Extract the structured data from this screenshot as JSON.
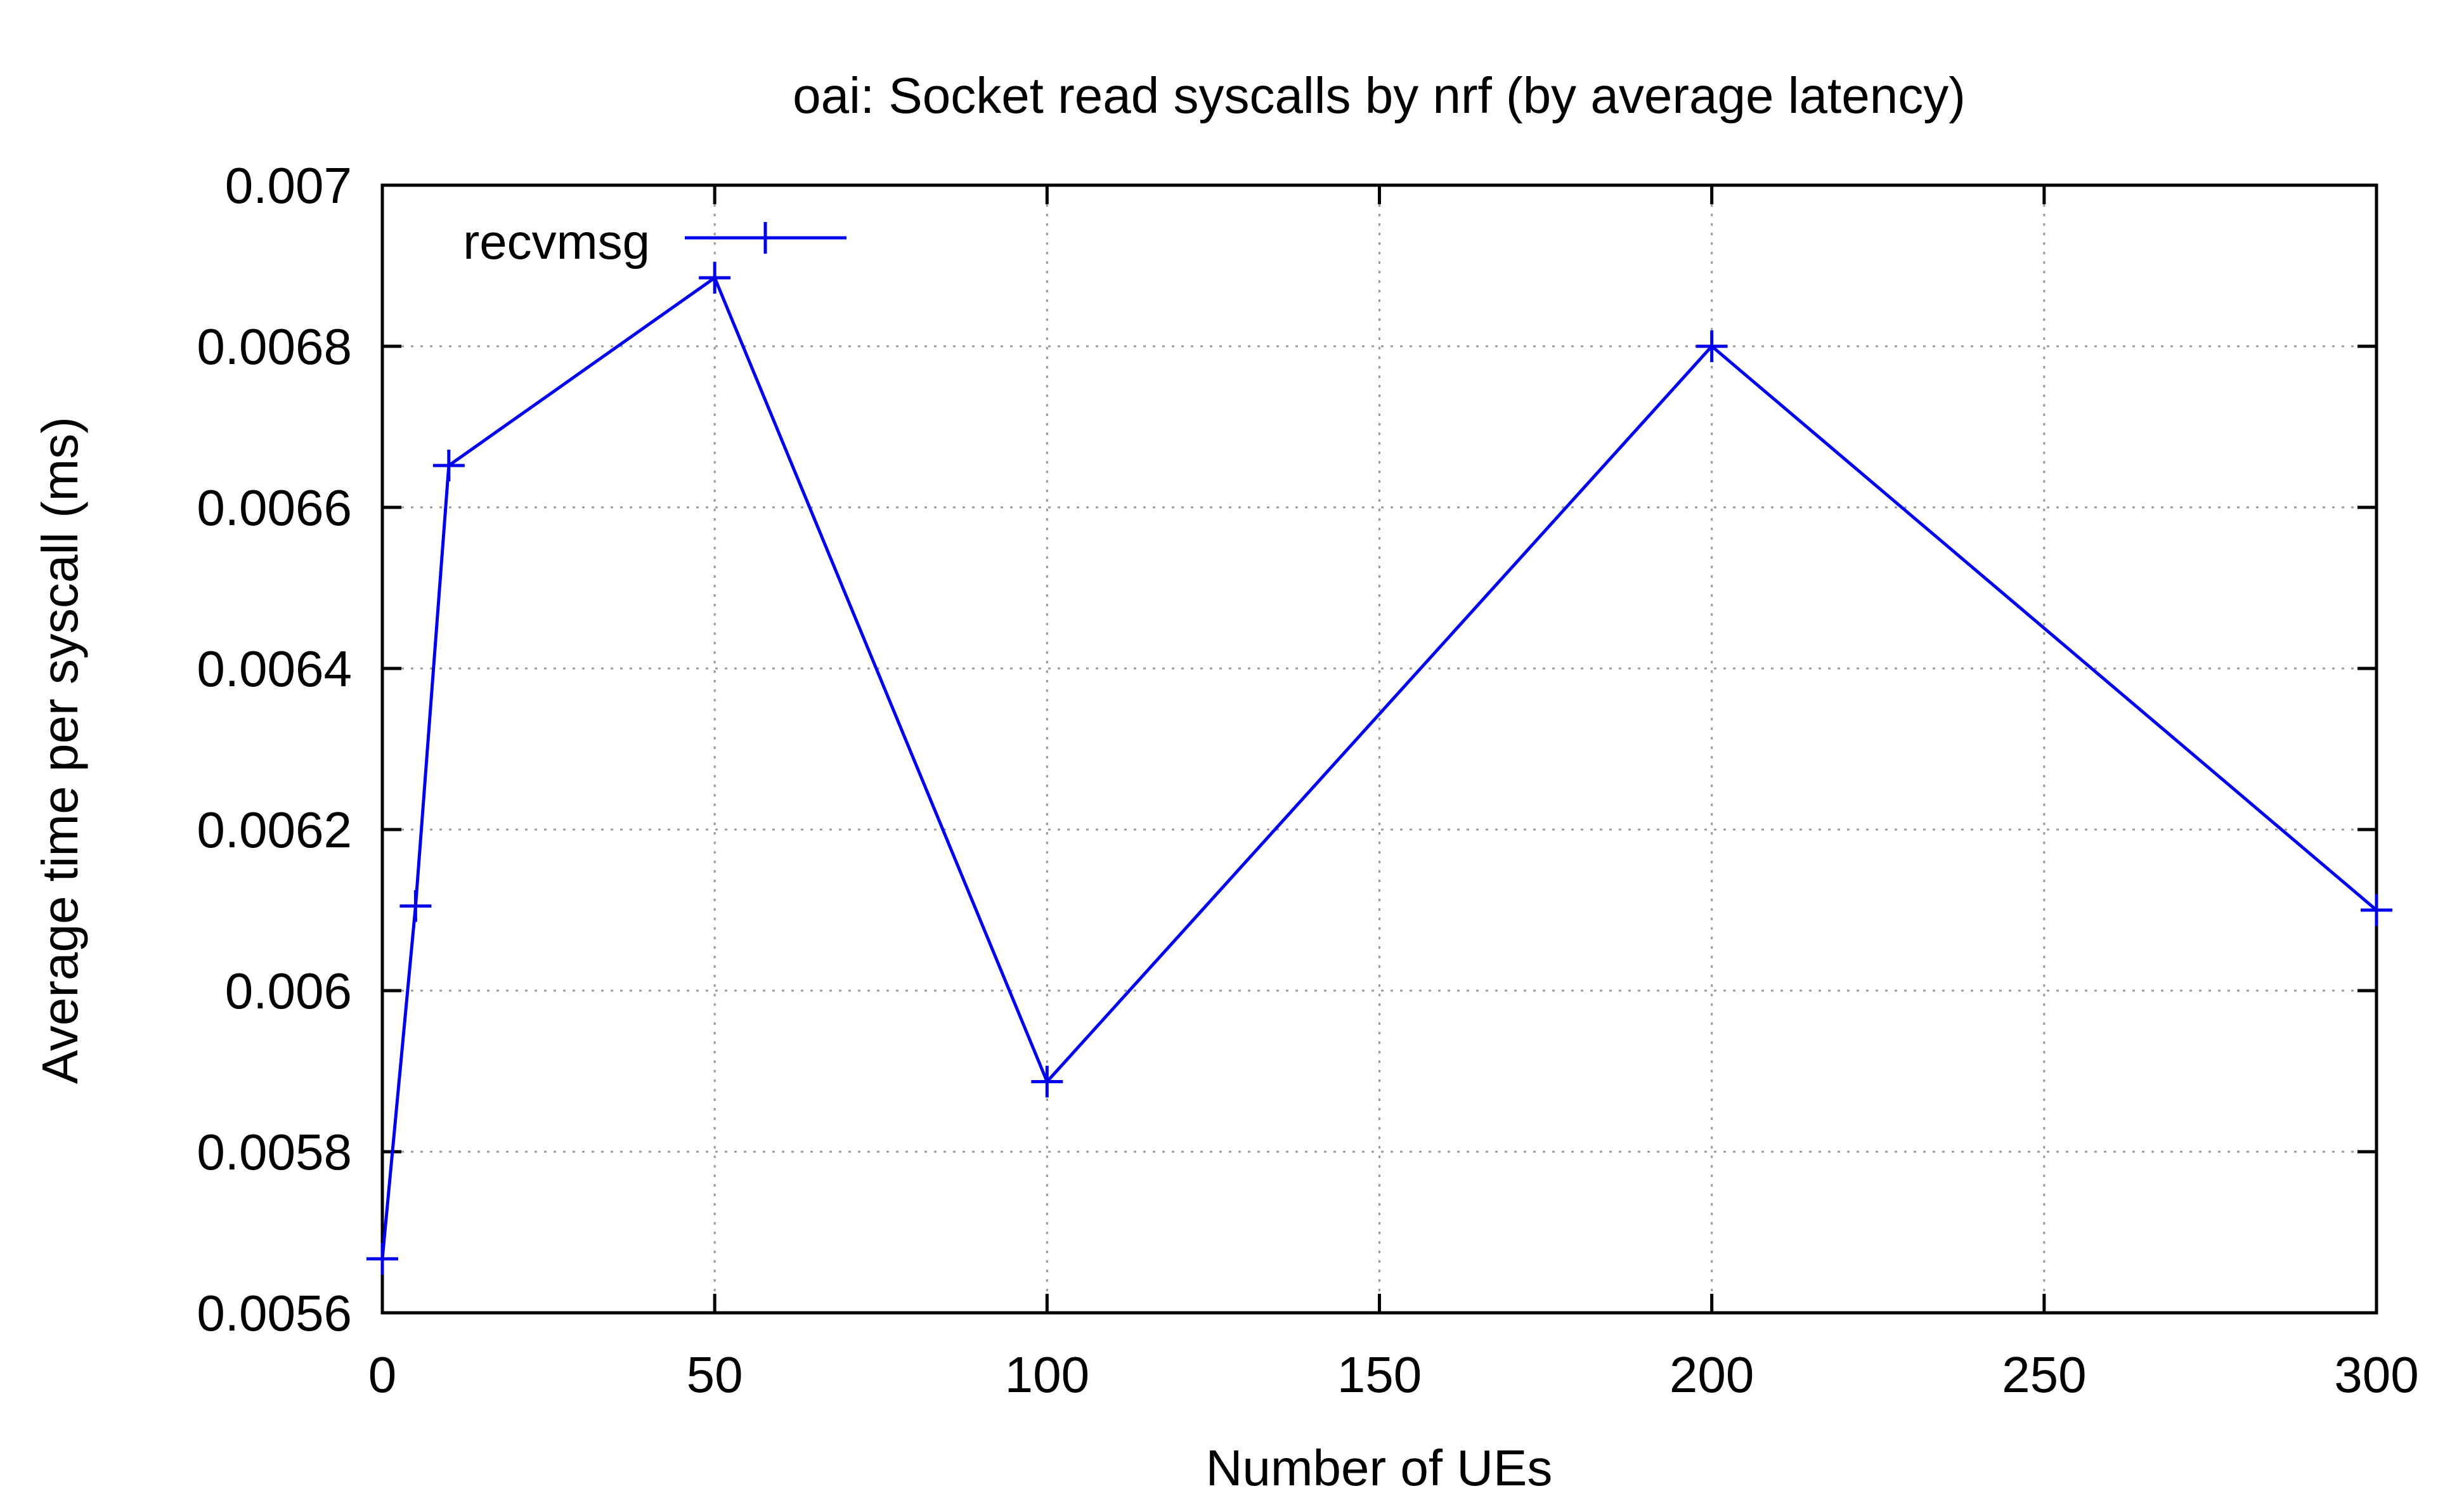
{
  "chart_data": {
    "type": "line",
    "title": "oai: Socket read syscalls by nrf (by average latency)",
    "xlabel": "Number of UEs",
    "ylabel": "Average time per syscall (ms)",
    "xlim": [
      0,
      300
    ],
    "ylim": [
      0.0056,
      0.007
    ],
    "xticks": [
      0,
      50,
      100,
      150,
      200,
      250,
      300
    ],
    "xtick_labels": [
      "0",
      "50",
      "100",
      "150",
      "200",
      "250",
      "300"
    ],
    "yticks": [
      0.0056,
      0.0058,
      0.006,
      0.0062,
      0.0064,
      0.0066,
      0.0068,
      0.007
    ],
    "ytick_labels": [
      "0.0056",
      "0.0058",
      "0.006",
      "0.0062",
      "0.0064",
      "0.0066",
      "0.0068",
      "0.007"
    ],
    "grid": true,
    "legend_position": "top-left",
    "series": [
      {
        "name": "recvmsg",
        "color": "#0000ee",
        "marker": "plus",
        "x": [
          0,
          5,
          10,
          50,
          100,
          200,
          300
        ],
        "y": [
          0.005667,
          0.006105,
          0.006652,
          0.006885,
          0.005887,
          0.0068,
          0.0061
        ]
      }
    ]
  }
}
